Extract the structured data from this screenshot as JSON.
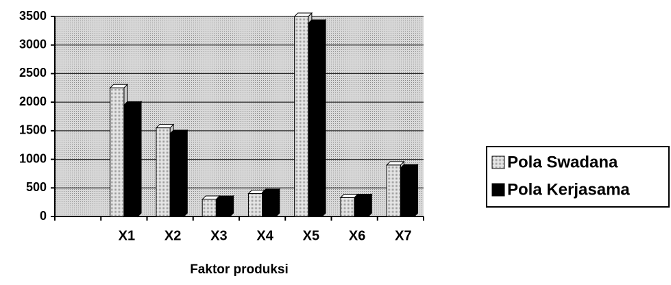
{
  "chart_data": {
    "type": "bar",
    "x_label": "Faktor produksi",
    "categories": [
      null,
      "X1",
      "X2",
      "X3",
      "X4",
      "X5",
      "X6",
      "X7"
    ],
    "series": [
      {
        "name": "Pola Swadana",
        "color": "#c8c8c8",
        "values": [
          null,
          2250,
          1550,
          300,
          400,
          3500,
          330,
          900
        ]
      },
      {
        "name": "Pola Kerjasama",
        "color": "#000000",
        "values": [
          null,
          1950,
          1450,
          300,
          420,
          3380,
          330,
          850
        ]
      }
    ],
    "ylim": [
      0,
      3500
    ],
    "yticks": [
      0,
      500,
      1000,
      1500,
      2000,
      2500,
      3000,
      3500
    ],
    "grid": true,
    "legend": "right"
  }
}
